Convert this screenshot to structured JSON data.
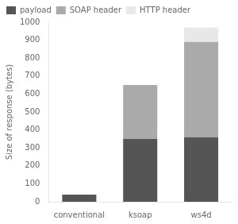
{
  "chart_data": {
    "type": "bar",
    "stacked": true,
    "categories": [
      "conventional",
      "ksoap",
      "ws4d"
    ],
    "series": [
      {
        "name": "payload",
        "color": "#555555",
        "values": [
          40,
          350,
          360
        ]
      },
      {
        "name": "SOAP header",
        "color": "#aaaaaa",
        "values": [
          0,
          300,
          530
        ]
      },
      {
        "name": "HTTP header",
        "color": "#e8e8e8",
        "values": [
          0,
          0,
          80
        ]
      }
    ],
    "ylabel": "Size of response (bytes)",
    "ylim": [
      0,
      1000
    ],
    "yticks": [
      0,
      100,
      200,
      300,
      400,
      500,
      600,
      700,
      800,
      900,
      1000
    ],
    "grid": false,
    "legend": "upper left"
  }
}
